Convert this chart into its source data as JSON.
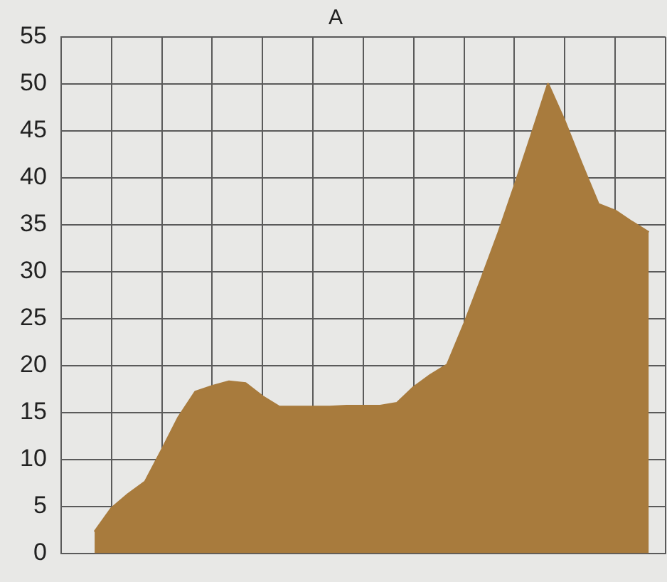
{
  "chart_data": {
    "type": "area",
    "title": "A",
    "tick_labels": "y",
    "grid": true,
    "ylim": [
      0,
      55
    ],
    "yticks": [
      0,
      5,
      10,
      15,
      20,
      25,
      30,
      35,
      40,
      45,
      50,
      55
    ],
    "categories": [
      null,
      null,
      null,
      null,
      null,
      null,
      null,
      null,
      null,
      null,
      null,
      null,
      null,
      null,
      null,
      null,
      null,
      null,
      null,
      null,
      null,
      null,
      null,
      null,
      null,
      null,
      null,
      null,
      null,
      null,
      null,
      null,
      null,
      null
    ],
    "series": [
      {
        "color": "#a87b3d",
        "values": [
          2.3,
          4.8,
          6.3,
          7.6,
          11,
          14.5,
          17.2,
          17.8,
          18.3,
          18.1,
          16.7,
          15.6,
          15.6,
          15.6,
          15.6,
          15.7,
          15.7,
          15.7,
          16,
          17.7,
          19,
          20.1,
          24.4,
          29.1,
          33.9,
          39.1,
          44.5,
          50,
          46,
          41.5,
          37.2,
          36.5,
          35.3,
          34.2
        ]
      }
    ]
  }
}
